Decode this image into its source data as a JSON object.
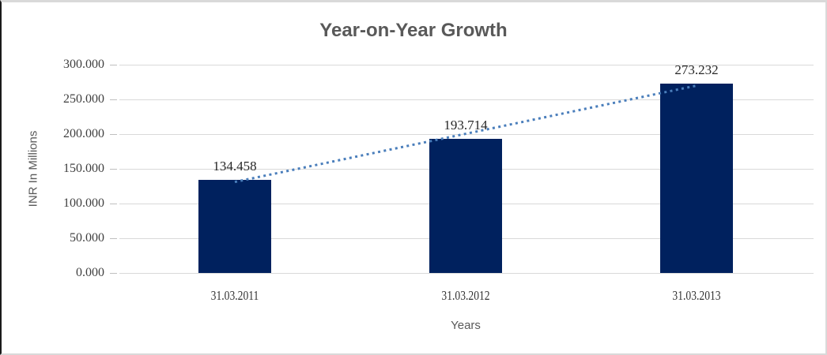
{
  "chart_data": {
    "type": "bar",
    "title": "Year-on-Year Growth",
    "xlabel": "Years",
    "ylabel": "INR In Millions",
    "categories": [
      "31.03.2011",
      "31.03.2012",
      "31.03.2013"
    ],
    "values": [
      134.458,
      193.714,
      273.232
    ],
    "data_labels": [
      "134.458",
      "193.714",
      "273.232"
    ],
    "ytick_values": [
      0,
      50,
      100,
      150,
      200,
      250,
      300
    ],
    "ytick_labels": [
      "0.000",
      "50.000",
      "100.000",
      "150.000",
      "200.000",
      "250.000",
      "300.000"
    ],
    "ylim": [
      0,
      300
    ],
    "grid": true,
    "legend_position": "none",
    "bar_color": "#00215e",
    "trendline": {
      "type": "linear",
      "style": "dotted",
      "color": "#4a7ebb"
    }
  },
  "colors": {
    "title_text": "#595959",
    "axis_title_text": "#595959",
    "tick_text": "#404040",
    "gridline": "#d9d9d9",
    "bar": "#00215e",
    "trendline": "#4a7ebb",
    "frame_border": "#d9d9d9",
    "frame_left_border": "#1a1a1a"
  }
}
